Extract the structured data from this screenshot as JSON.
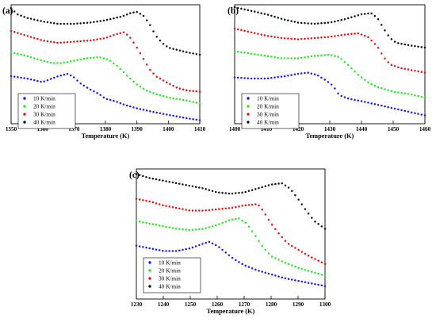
{
  "colors": {
    "10": "#1a1aee",
    "20": "#22ee22",
    "30": "#ee1111",
    "40": "#111111"
  },
  "chart_data": [
    {
      "type": "scatter",
      "panel_label": "(a)",
      "xlabel": "Temperature (K)",
      "ylabel": "",
      "xlim": [
        1350,
        1410
      ],
      "ylim": [
        0,
        100
      ],
      "xticks": [
        1350,
        1360,
        1370,
        1380,
        1390,
        1400,
        1410
      ],
      "legend_position": "bottom-left",
      "series": [
        {
          "name": "10 K/min",
          "color_key": "10",
          "points": [
            [
              1350,
              40
            ],
            [
              1355,
              38
            ],
            [
              1360,
              35
            ],
            [
              1362,
              37
            ],
            [
              1365,
              40
            ],
            [
              1368,
              42
            ],
            [
              1370,
              39
            ],
            [
              1372,
              34
            ],
            [
              1375,
              29
            ],
            [
              1378,
              25
            ],
            [
              1380,
              21
            ],
            [
              1383,
              19
            ],
            [
              1386,
              16
            ],
            [
              1390,
              13
            ],
            [
              1395,
              10
            ],
            [
              1400,
              7.5
            ],
            [
              1405,
              5
            ],
            [
              1410,
              3
            ]
          ]
        },
        {
          "name": "20 K/min",
          "color_key": "20",
          "points": [
            [
              1350,
              60
            ],
            [
              1355,
              57
            ],
            [
              1360,
              53
            ],
            [
              1363,
              51
            ],
            [
              1366,
              51
            ],
            [
              1370,
              53
            ],
            [
              1374,
              55
            ],
            [
              1378,
              56
            ],
            [
              1381,
              54
            ],
            [
              1384,
              48
            ],
            [
              1387,
              40
            ],
            [
              1390,
              33
            ],
            [
              1393,
              28
            ],
            [
              1396,
              25
            ],
            [
              1400,
              22
            ],
            [
              1405,
              20
            ],
            [
              1410,
              17
            ]
          ]
        },
        {
          "name": "30 K/min",
          "color_key": "30",
          "points": [
            [
              1350,
              78
            ],
            [
              1355,
              74
            ],
            [
              1360,
              70
            ],
            [
              1365,
              68
            ],
            [
              1370,
              69
            ],
            [
              1375,
              70
            ],
            [
              1380,
              72
            ],
            [
              1383,
              75
            ],
            [
              1386,
              77
            ],
            [
              1388,
              72
            ],
            [
              1390,
              64
            ],
            [
              1392,
              55
            ],
            [
              1394,
              46
            ],
            [
              1396,
              40
            ],
            [
              1398,
              37
            ],
            [
              1400,
              34
            ],
            [
              1403,
              30
            ],
            [
              1406,
              28
            ],
            [
              1410,
              27
            ]
          ]
        },
        {
          "name": "40 K/min",
          "color_key": "40",
          "points": [
            [
              1350,
              97
            ],
            [
              1352,
              92
            ],
            [
              1355,
              89
            ],
            [
              1360,
              86
            ],
            [
              1365,
              84
            ],
            [
              1370,
              84
            ],
            [
              1375,
              85
            ],
            [
              1380,
              87
            ],
            [
              1385,
              90
            ],
            [
              1388,
              93
            ],
            [
              1390,
              94
            ],
            [
              1392,
              91
            ],
            [
              1394,
              84
            ],
            [
              1396,
              74
            ],
            [
              1398,
              68
            ],
            [
              1400,
              64
            ],
            [
              1403,
              62
            ],
            [
              1406,
              60
            ],
            [
              1410,
              58
            ]
          ]
        }
      ]
    },
    {
      "type": "scatter",
      "panel_label": "(b)",
      "xlabel": "Temperature (K)",
      "ylabel": "",
      "xlim": [
        1400,
        1460
      ],
      "ylim": [
        0,
        100
      ],
      "xticks": [
        1400,
        1410,
        1420,
        1430,
        1440,
        1450,
        1460
      ],
      "legend_position": "bottom-left",
      "series": [
        {
          "name": "10 K/min",
          "color_key": "10",
          "points": [
            [
              1400,
              39
            ],
            [
              1405,
              38
            ],
            [
              1410,
              38
            ],
            [
              1413,
              39
            ],
            [
              1416,
              40
            ],
            [
              1420,
              42
            ],
            [
              1423,
              43
            ],
            [
              1426,
              41
            ],
            [
              1429,
              36
            ],
            [
              1431,
              32
            ],
            [
              1433,
              24
            ],
            [
              1436,
              21
            ],
            [
              1440,
              19
            ],
            [
              1445,
              16
            ],
            [
              1450,
              13
            ],
            [
              1455,
              10
            ],
            [
              1460,
              7
            ]
          ]
        },
        {
          "name": "20 K/min",
          "color_key": "20",
          "points": [
            [
              1400,
              61
            ],
            [
              1405,
              59
            ],
            [
              1410,
              57
            ],
            [
              1415,
              55
            ],
            [
              1420,
              55
            ],
            [
              1425,
              57
            ],
            [
              1430,
              58
            ],
            [
              1433,
              56
            ],
            [
              1436,
              49
            ],
            [
              1439,
              41
            ],
            [
              1442,
              35
            ],
            [
              1445,
              31
            ],
            [
              1450,
              27
            ],
            [
              1455,
              25
            ],
            [
              1460,
              22
            ]
          ]
        },
        {
          "name": "30 K/min",
          "color_key": "30",
          "points": [
            [
              1400,
              80
            ],
            [
              1405,
              77
            ],
            [
              1410,
              74
            ],
            [
              1415,
              72
            ],
            [
              1420,
              71
            ],
            [
              1425,
              72
            ],
            [
              1430,
              73
            ],
            [
              1435,
              75
            ],
            [
              1439,
              76
            ],
            [
              1442,
              73
            ],
            [
              1445,
              65
            ],
            [
              1447,
              56
            ],
            [
              1449,
              50
            ],
            [
              1452,
              47
            ],
            [
              1456,
              45
            ],
            [
              1460,
              43
            ]
          ]
        },
        {
          "name": "40 K/min",
          "color_key": "40",
          "points": [
            [
              1400,
              98
            ],
            [
              1405,
              95
            ],
            [
              1410,
              92
            ],
            [
              1415,
              88
            ],
            [
              1420,
              85
            ],
            [
              1425,
              84
            ],
            [
              1430,
              85
            ],
            [
              1435,
              88
            ],
            [
              1440,
              92
            ],
            [
              1443,
              93
            ],
            [
              1445,
              89
            ],
            [
              1447,
              80
            ],
            [
              1449,
              72
            ],
            [
              1451,
              68
            ],
            [
              1455,
              66
            ],
            [
              1460,
              64
            ]
          ]
        }
      ]
    },
    {
      "type": "scatter",
      "panel_label": "(c)",
      "xlabel": "Temperature (K)",
      "ylabel": "",
      "xlim": [
        1230,
        1300
      ],
      "ylim": [
        0,
        100
      ],
      "xticks": [
        1230,
        1240,
        1250,
        1260,
        1270,
        1280,
        1290,
        1300
      ],
      "legend_position": "bottom-left",
      "series": [
        {
          "name": "10 K/min",
          "color_key": "10",
          "points": [
            [
              1230,
              41
            ],
            [
              1235,
              39
            ],
            [
              1240,
              37
            ],
            [
              1245,
              37
            ],
            [
              1250,
              39
            ],
            [
              1254,
              42
            ],
            [
              1257,
              44
            ],
            [
              1260,
              41
            ],
            [
              1263,
              36
            ],
            [
              1266,
              31
            ],
            [
              1270,
              26
            ],
            [
              1275,
              22
            ],
            [
              1280,
              19
            ],
            [
              1285,
              16
            ],
            [
              1290,
              14
            ],
            [
              1295,
              12
            ],
            [
              1300,
              10
            ]
          ]
        },
        {
          "name": "20 K/min",
          "color_key": "20",
          "points": [
            [
              1230,
              60
            ],
            [
              1235,
              58
            ],
            [
              1240,
              56
            ],
            [
              1245,
              54
            ],
            [
              1250,
              53
            ],
            [
              1255,
              54
            ],
            [
              1260,
              57
            ],
            [
              1265,
              61
            ],
            [
              1268,
              62
            ],
            [
              1271,
              58
            ],
            [
              1274,
              49
            ],
            [
              1277,
              40
            ],
            [
              1280,
              33
            ],
            [
              1285,
              28
            ],
            [
              1290,
              24
            ],
            [
              1295,
              21
            ],
            [
              1300,
              18
            ]
          ]
        },
        {
          "name": "30 K/min",
          "color_key": "30",
          "points": [
            [
              1230,
              77
            ],
            [
              1235,
              75
            ],
            [
              1240,
              72
            ],
            [
              1245,
              70
            ],
            [
              1250,
              68
            ],
            [
              1255,
              68
            ],
            [
              1260,
              69
            ],
            [
              1265,
              70
            ],
            [
              1270,
              72
            ],
            [
              1275,
              73
            ],
            [
              1277,
              68
            ],
            [
              1280,
              58
            ],
            [
              1283,
              50
            ],
            [
              1286,
              43
            ],
            [
              1290,
              38
            ],
            [
              1295,
              32
            ],
            [
              1300,
              27
            ]
          ]
        },
        {
          "name": "40 K/min",
          "color_key": "40",
          "points": [
            [
              1230,
              96
            ],
            [
              1235,
              93
            ],
            [
              1240,
              91
            ],
            [
              1245,
              89
            ],
            [
              1250,
              87
            ],
            [
              1255,
              85
            ],
            [
              1260,
              82
            ],
            [
              1265,
              81
            ],
            [
              1270,
              82
            ],
            [
              1275,
              85
            ],
            [
              1280,
              88
            ],
            [
              1284,
              89
            ],
            [
              1287,
              85
            ],
            [
              1290,
              77
            ],
            [
              1293,
              68
            ],
            [
              1296,
              60
            ],
            [
              1300,
              54
            ]
          ]
        }
      ]
    }
  ]
}
